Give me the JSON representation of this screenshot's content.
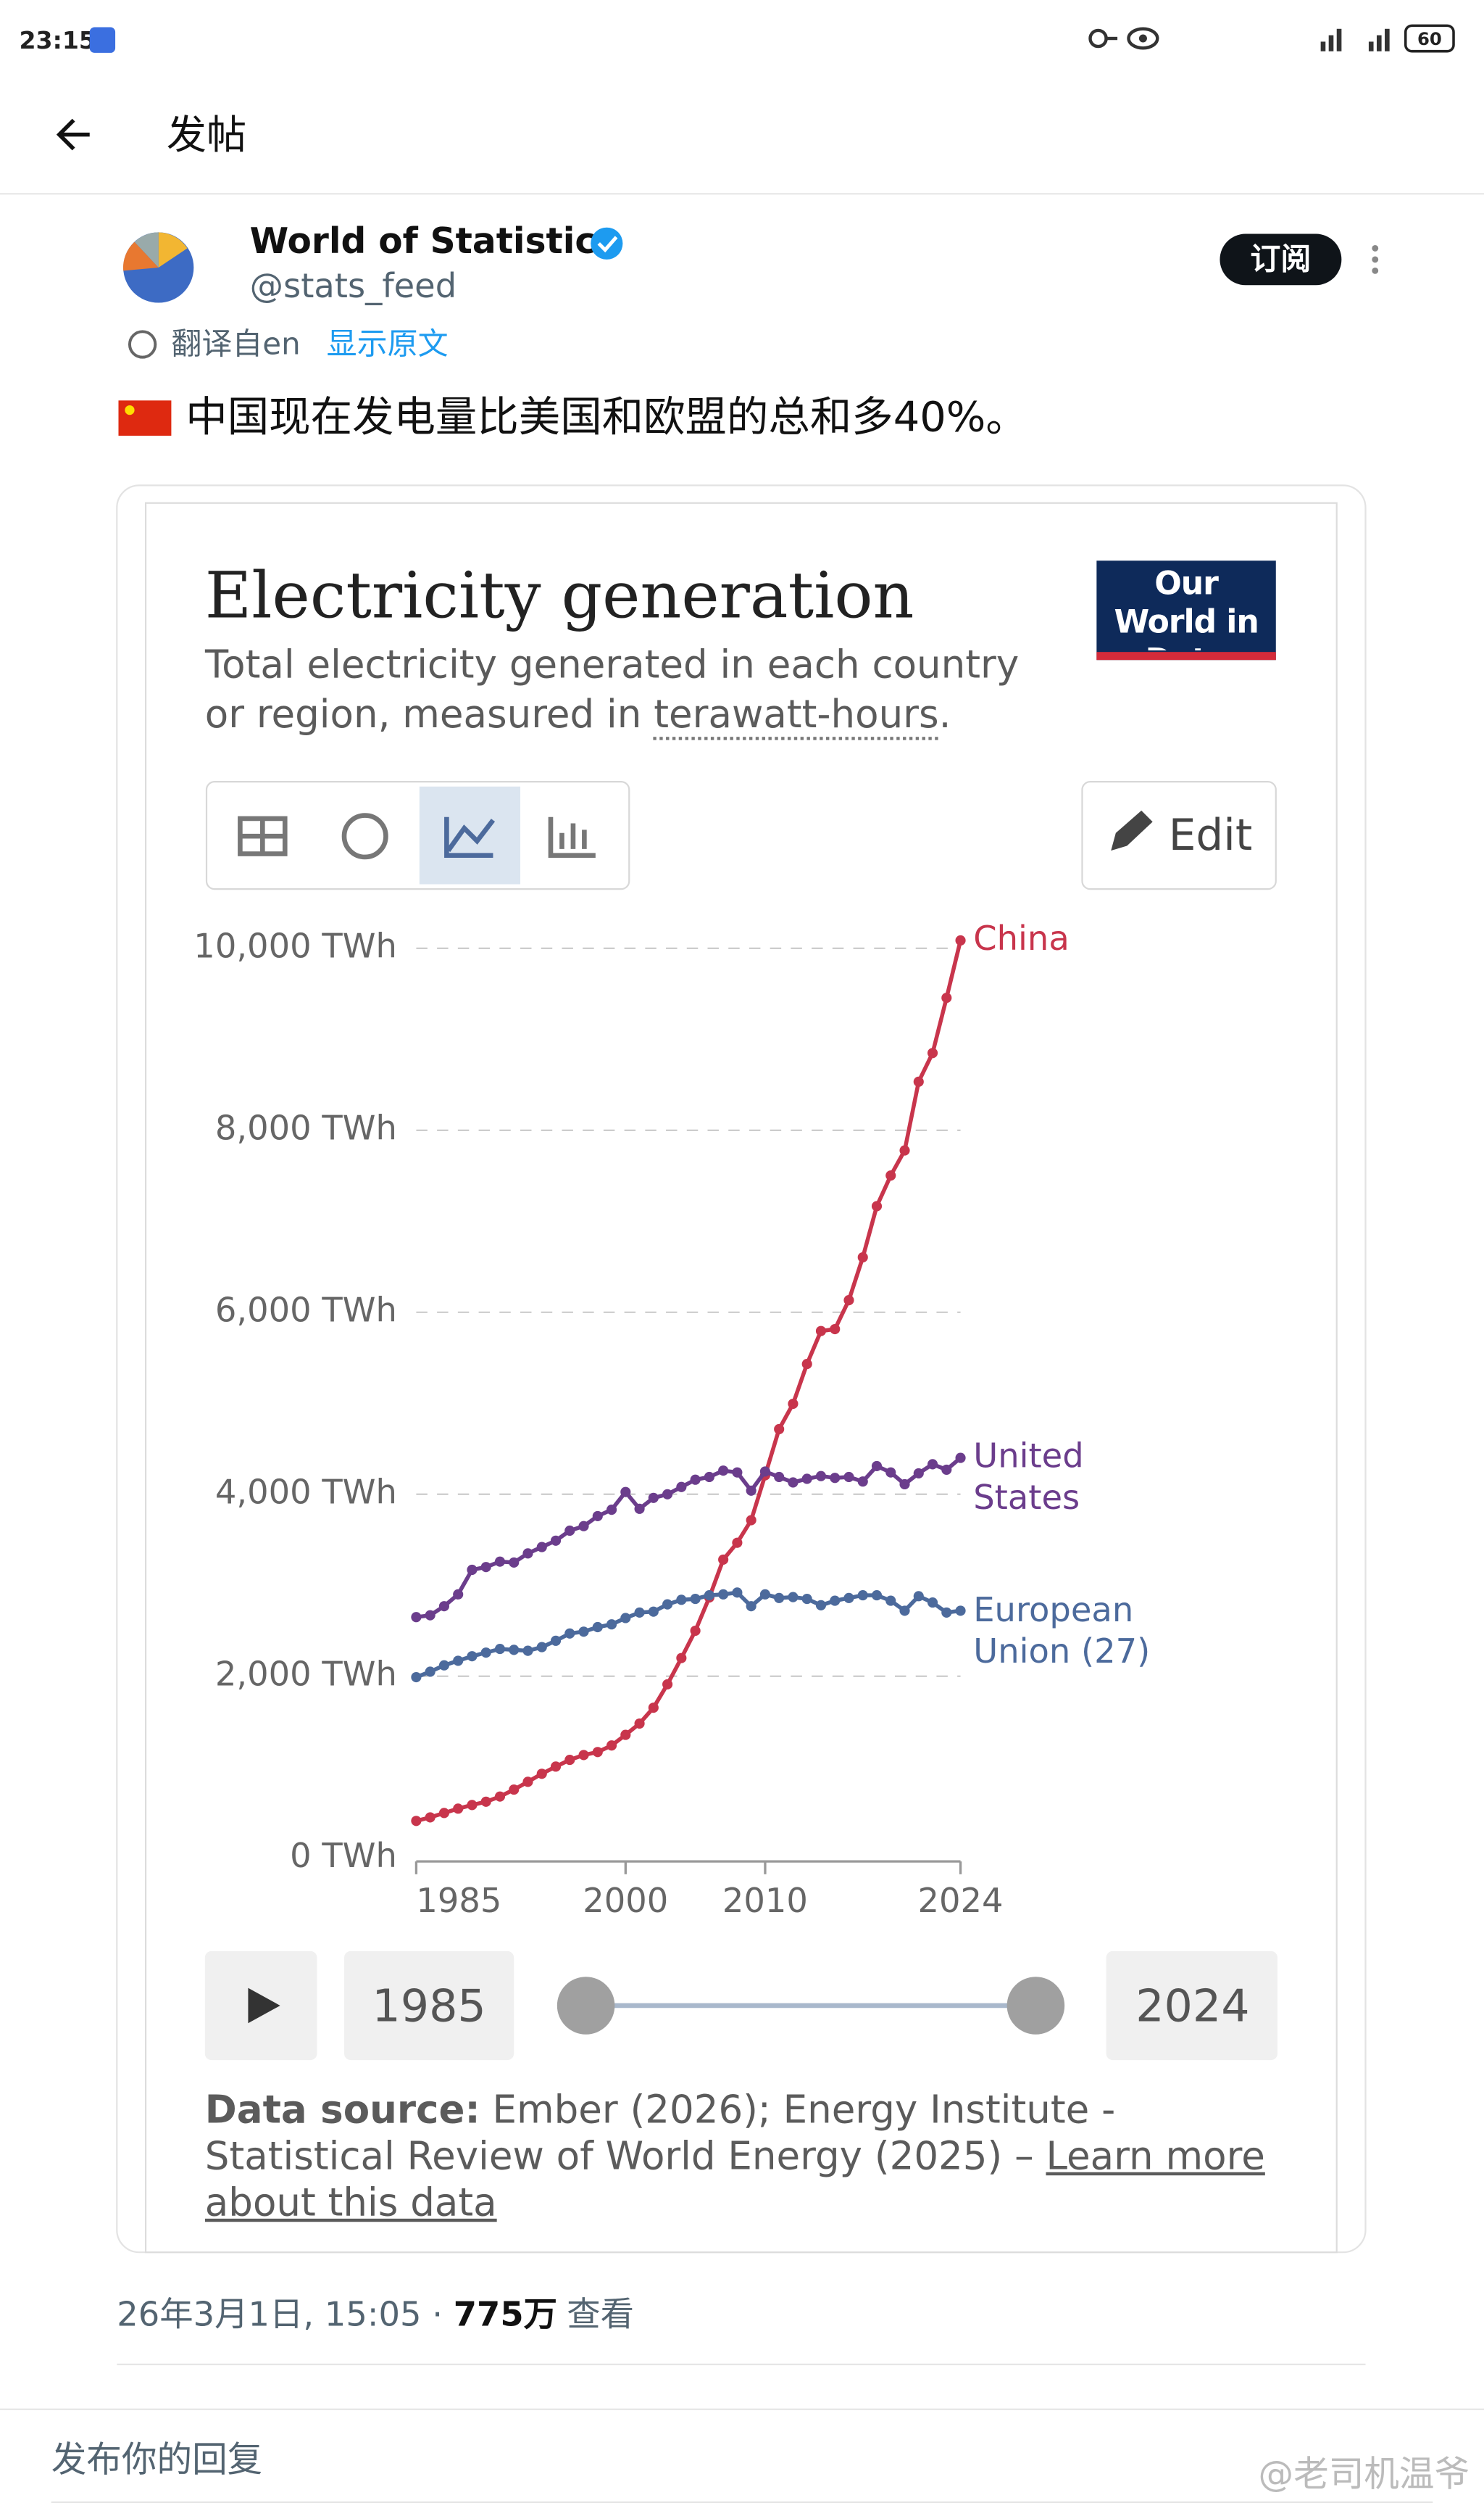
{
  "status_bar": {
    "time": "23:15",
    "battery": "60"
  },
  "header": {
    "title": "发帖"
  },
  "post": {
    "author": "World of Statistics",
    "handle": "@stats_feed",
    "subscribe": "订阅",
    "translated": "翻译自en",
    "show_original": "显示原文",
    "text": "中国现在发电量比美国和欧盟的总和多40%。",
    "timestamp": "26年3月1日, 15:05 · ",
    "views": "775万",
    "views_label": "查看"
  },
  "chart_data": {
    "type": "line",
    "title": "Electricity generation",
    "subtitle": "Total electricity generated in each country or region, measured in ",
    "subtitle_link": "terawatt-hours",
    "subtitle_end": ".",
    "logo": "Our World in Data",
    "edit": "Edit",
    "source_label": "Data source:",
    "source_text": " Ember (2026); Energy Institute - Statistical Review of World Energy (2025) – ",
    "source_link": "Learn more about this data",
    "x": [
      1985,
      1986,
      1987,
      1988,
      1989,
      1990,
      1991,
      1992,
      1993,
      1994,
      1995,
      1996,
      1997,
      1998,
      1999,
      2000,
      2001,
      2002,
      2003,
      2004,
      2005,
      2006,
      2007,
      2008,
      2009,
      2010,
      2011,
      2012,
      2013,
      2014,
      2015,
      2016,
      2017,
      2018,
      2019,
      2020,
      2021,
      2022,
      2023,
      2024
    ],
    "xlim": [
      1985,
      2024
    ],
    "xticks": [
      1985,
      2000,
      2010,
      2024
    ],
    "ylim": [
      0,
      10000
    ],
    "yticks": [
      {
        "value": 0,
        "label": "0 TWh"
      },
      {
        "value": 2000,
        "label": "2,000 TWh"
      },
      {
        "value": 4000,
        "label": "4,000 TWh"
      },
      {
        "value": 6000,
        "label": "6,000 TWh"
      },
      {
        "value": 8000,
        "label": "8,000 TWh"
      },
      {
        "value": 10000,
        "label": "10,000 TWh"
      }
    ],
    "grid": true,
    "series": [
      {
        "name": "China",
        "color": "#c8354c",
        "values": [
          410,
          449,
          497,
          545,
          585,
          621,
          678,
          754,
          840,
          928,
          1007,
          1081,
          1134,
          1167,
          1239,
          1356,
          1480,
          1654,
          1911,
          2200,
          2500,
          2866,
          3282,
          3467,
          3715,
          4208,
          4716,
          4994,
          5432,
          5794,
          5815,
          6133,
          6604,
          7166,
          7503,
          7779,
          8534,
          8849,
          9456,
          10087
        ]
      },
      {
        "name": "United States",
        "color": "#6b3d8c",
        "values": [
          2650,
          2670,
          2770,
          2900,
          3170,
          3200,
          3260,
          3250,
          3350,
          3420,
          3490,
          3600,
          3650,
          3760,
          3830,
          4025,
          3840,
          3960,
          4000,
          4080,
          4160,
          4190,
          4260,
          4240,
          4040,
          4250,
          4190,
          4130,
          4170,
          4200,
          4180,
          4190,
          4140,
          4310,
          4240,
          4110,
          4230,
          4330,
          4270,
          4400
        ]
      },
      {
        "name": "European Union (27)",
        "color": "#4c6a9c",
        "values": [
          1990,
          2050,
          2120,
          2170,
          2220,
          2260,
          2300,
          2290,
          2280,
          2320,
          2390,
          2470,
          2490,
          2540,
          2570,
          2640,
          2700,
          2710,
          2790,
          2840,
          2850,
          2890,
          2900,
          2920,
          2770,
          2900,
          2860,
          2870,
          2850,
          2780,
          2830,
          2860,
          2890,
          2890,
          2830,
          2720,
          2880,
          2810,
          2700,
          2720
        ]
      }
    ]
  },
  "reply": {
    "placeholder": "发布你的回复"
  },
  "watermark": "@老司机温爷"
}
